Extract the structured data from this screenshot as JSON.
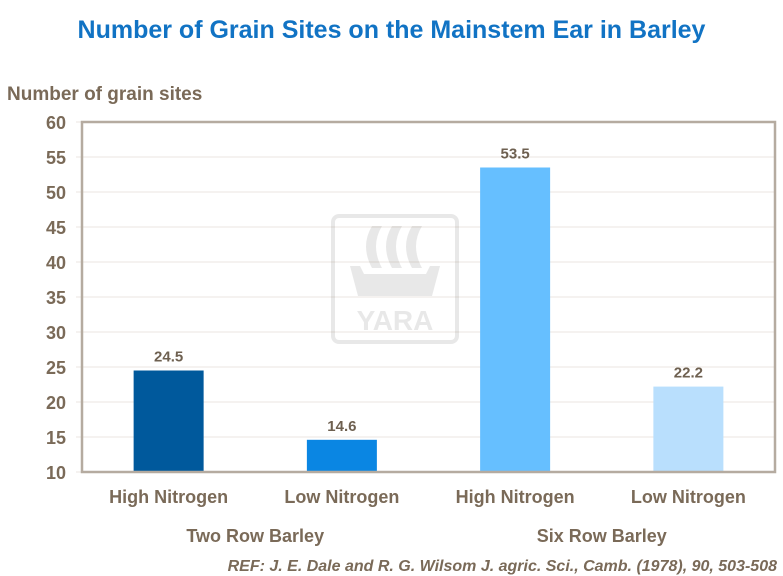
{
  "chart_data": {
    "type": "bar",
    "title": "Number of Grain Sites on the Mainstem Ear in Barley",
    "ylabel": "Number of grain sites",
    "xlabel": "",
    "ylim": [
      10,
      60
    ],
    "yticks": [
      10,
      15,
      20,
      25,
      30,
      35,
      40,
      45,
      50,
      55,
      60
    ],
    "grid": true,
    "categories": [
      "High Nitrogen",
      "Low Nitrogen",
      "High Nitrogen",
      "Low Nitrogen"
    ],
    "groups": [
      {
        "label": "Two Row Barley",
        "categories": [
          0,
          1
        ]
      },
      {
        "label": "Six Row Barley",
        "categories": [
          2,
          3
        ]
      }
    ],
    "values": [
      24.5,
      14.6,
      53.5,
      22.2
    ],
    "data_labels": [
      "24.5",
      "14.6",
      "53.5",
      "22.2"
    ],
    "colors": [
      "#00599c",
      "#0a86e3",
      "#66bfff",
      "#b9dffd"
    ],
    "reference": "REF: J. E. Dale and R. G. Wilsom J. agric. Sci., Camb. (1978), 90, 503-508",
    "watermark": "YARA"
  }
}
